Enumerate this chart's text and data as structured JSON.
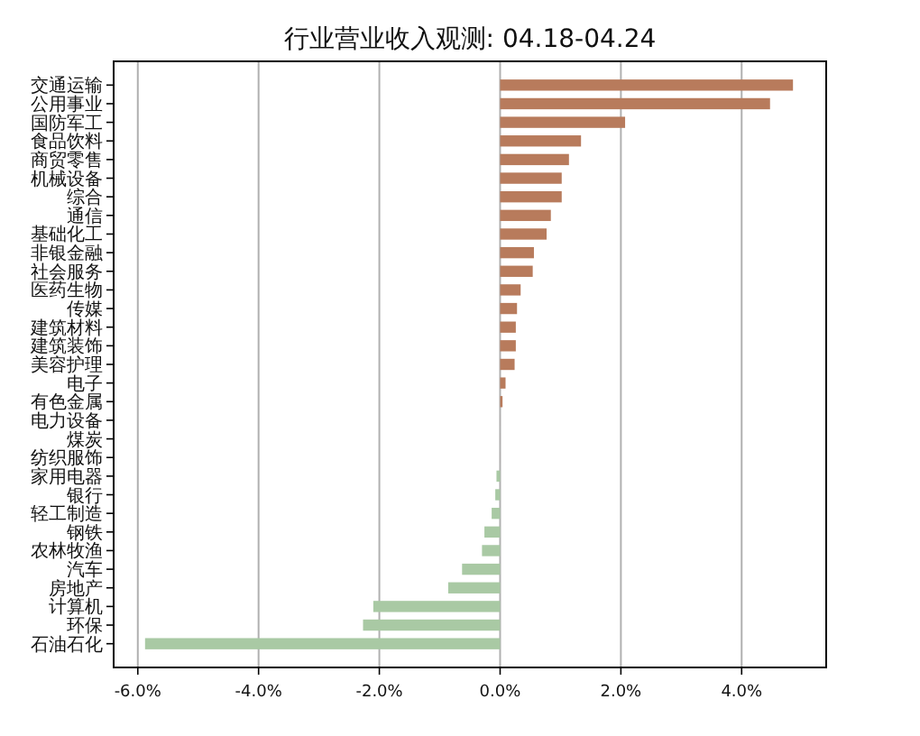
{
  "chart_data": {
    "type": "bar",
    "orientation": "horizontal",
    "title": "行业营业收入观测: 04.18-04.24",
    "categories": [
      "交通运输",
      "公用事业",
      "国防军工",
      "食品饮料",
      "商贸零售",
      "机械设备",
      "综合",
      "通信",
      "基础化工",
      "非银金融",
      "社会服务",
      "医药生物",
      "传媒",
      "建筑材料",
      "建筑装饰",
      "美容护理",
      "电子",
      "有色金属",
      "电力设备",
      "煤炭",
      "纺织服饰",
      "家用电器",
      "银行",
      "轻工制造",
      "钢铁",
      "农林牧渔",
      "汽车",
      "房地产",
      "计算机",
      "环保",
      "石油石化"
    ],
    "values": [
      4.85,
      4.47,
      2.07,
      1.34,
      1.14,
      1.02,
      1.02,
      0.84,
      0.77,
      0.56,
      0.54,
      0.34,
      0.28,
      0.26,
      0.26,
      0.24,
      0.09,
      0.04,
      0,
      0,
      0,
      -0.06,
      -0.08,
      -0.14,
      -0.26,
      -0.3,
      -0.63,
      -0.86,
      -2.1,
      -2.27,
      -5.88
    ],
    "colors": [
      "#b87b5c",
      "#b87b5c",
      "#b87b5c",
      "#b87b5c",
      "#b87b5c",
      "#b87b5c",
      "#b87b5c",
      "#b87b5c",
      "#b87b5c",
      "#b87b5c",
      "#b87b5c",
      "#b87b5c",
      "#b87b5c",
      "#b87b5c",
      "#b87b5c",
      "#b87b5c",
      "#b87b5c",
      "#b87b5c",
      "#b87b5c",
      "#b87b5c",
      "#b87b5c",
      "#a9c9a4",
      "#a9c9a4",
      "#a9c9a4",
      "#a9c9a4",
      "#a9c9a4",
      "#a9c9a4",
      "#a9c9a4",
      "#a9c9a4",
      "#a9c9a4",
      "#a9c9a4"
    ],
    "xlim": [
      -6.4,
      5.4
    ],
    "xticks": [
      {
        "value": -6,
        "label": "-6.0%"
      },
      {
        "value": -4,
        "label": "-4.0%"
      },
      {
        "value": -2,
        "label": "-2.0%"
      },
      {
        "value": 0,
        "label": "0.0%"
      },
      {
        "value": 2,
        "label": "2.0%"
      },
      {
        "value": 4,
        "label": "4.0%"
      }
    ],
    "grid": "x"
  }
}
